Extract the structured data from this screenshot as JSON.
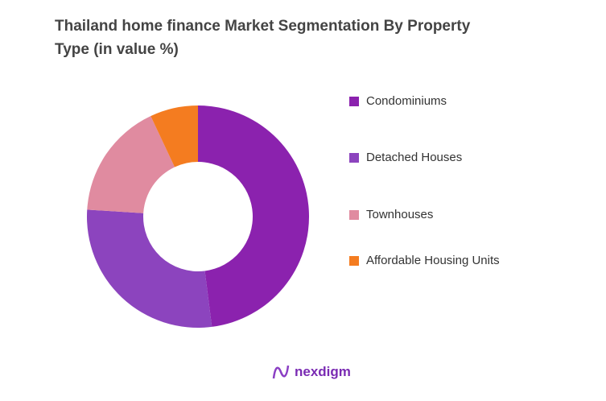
{
  "chart_data": {
    "type": "pie",
    "title": "Thailand home finance Market Segmentation By Property Type (in value %)",
    "donut": true,
    "legend_position": "right",
    "categories": [
      "Condominiums",
      "Detached Houses",
      "Townhouses",
      "Affordable Housing Units"
    ],
    "values": [
      48,
      28,
      17,
      7
    ],
    "colors": [
      "#8B22AE",
      "#8C44BE",
      "#E08BA0",
      "#F47C20"
    ]
  },
  "logo": {
    "text": "nexdigm"
  }
}
